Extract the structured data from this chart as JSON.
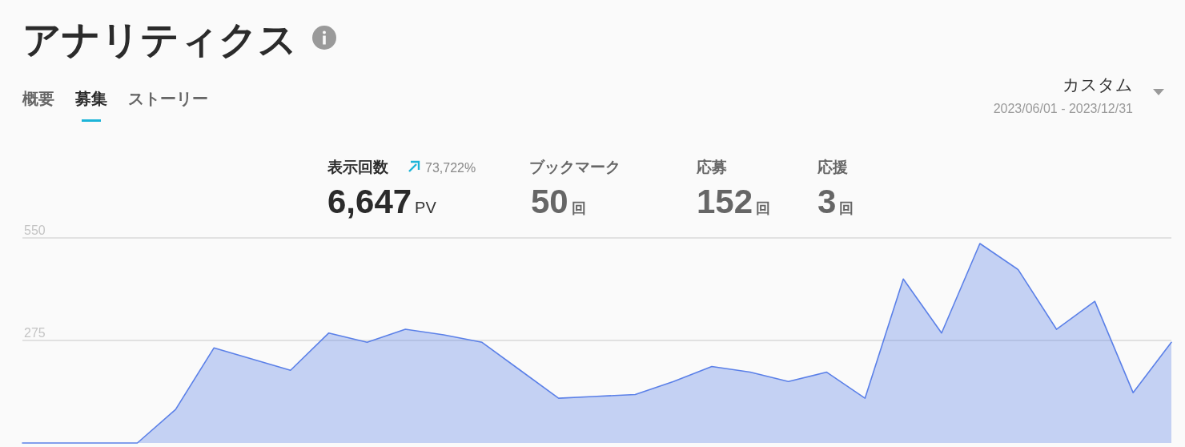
{
  "chart_data": {
    "type": "area",
    "title": "アナリティクス",
    "annotations": [
      "概要",
      "募集",
      "ストーリー",
      "カスタム",
      "2023/06/01 - 2023/12/31",
      "表示回数",
      "73,722%",
      "6,647",
      "PV",
      "ブックマーク",
      "50",
      "回",
      "応募",
      "152",
      "回",
      "応援",
      "3",
      "回"
    ],
    "categories": [
      null,
      null,
      null,
      null,
      null,
      null,
      null,
      null,
      null,
      null,
      null,
      null,
      null,
      null,
      null,
      null,
      null,
      null,
      null,
      null,
      null,
      null,
      null,
      null,
      null,
      null,
      null,
      null,
      null,
      null,
      null
    ],
    "values": [
      0,
      0,
      0,
      0,
      90,
      255,
      225,
      195,
      295,
      270,
      305,
      290,
      270,
      195,
      120,
      125,
      130,
      165,
      205,
      190,
      165,
      190,
      120,
      440,
      295,
      535,
      465,
      305,
      380,
      135,
      270
    ],
    "color": "#5b80e8",
    "ylim": [
      0,
      550
    ],
    "yticks": [
      275,
      550
    ],
    "grid": "y",
    "tick_labels": "y"
  }
}
